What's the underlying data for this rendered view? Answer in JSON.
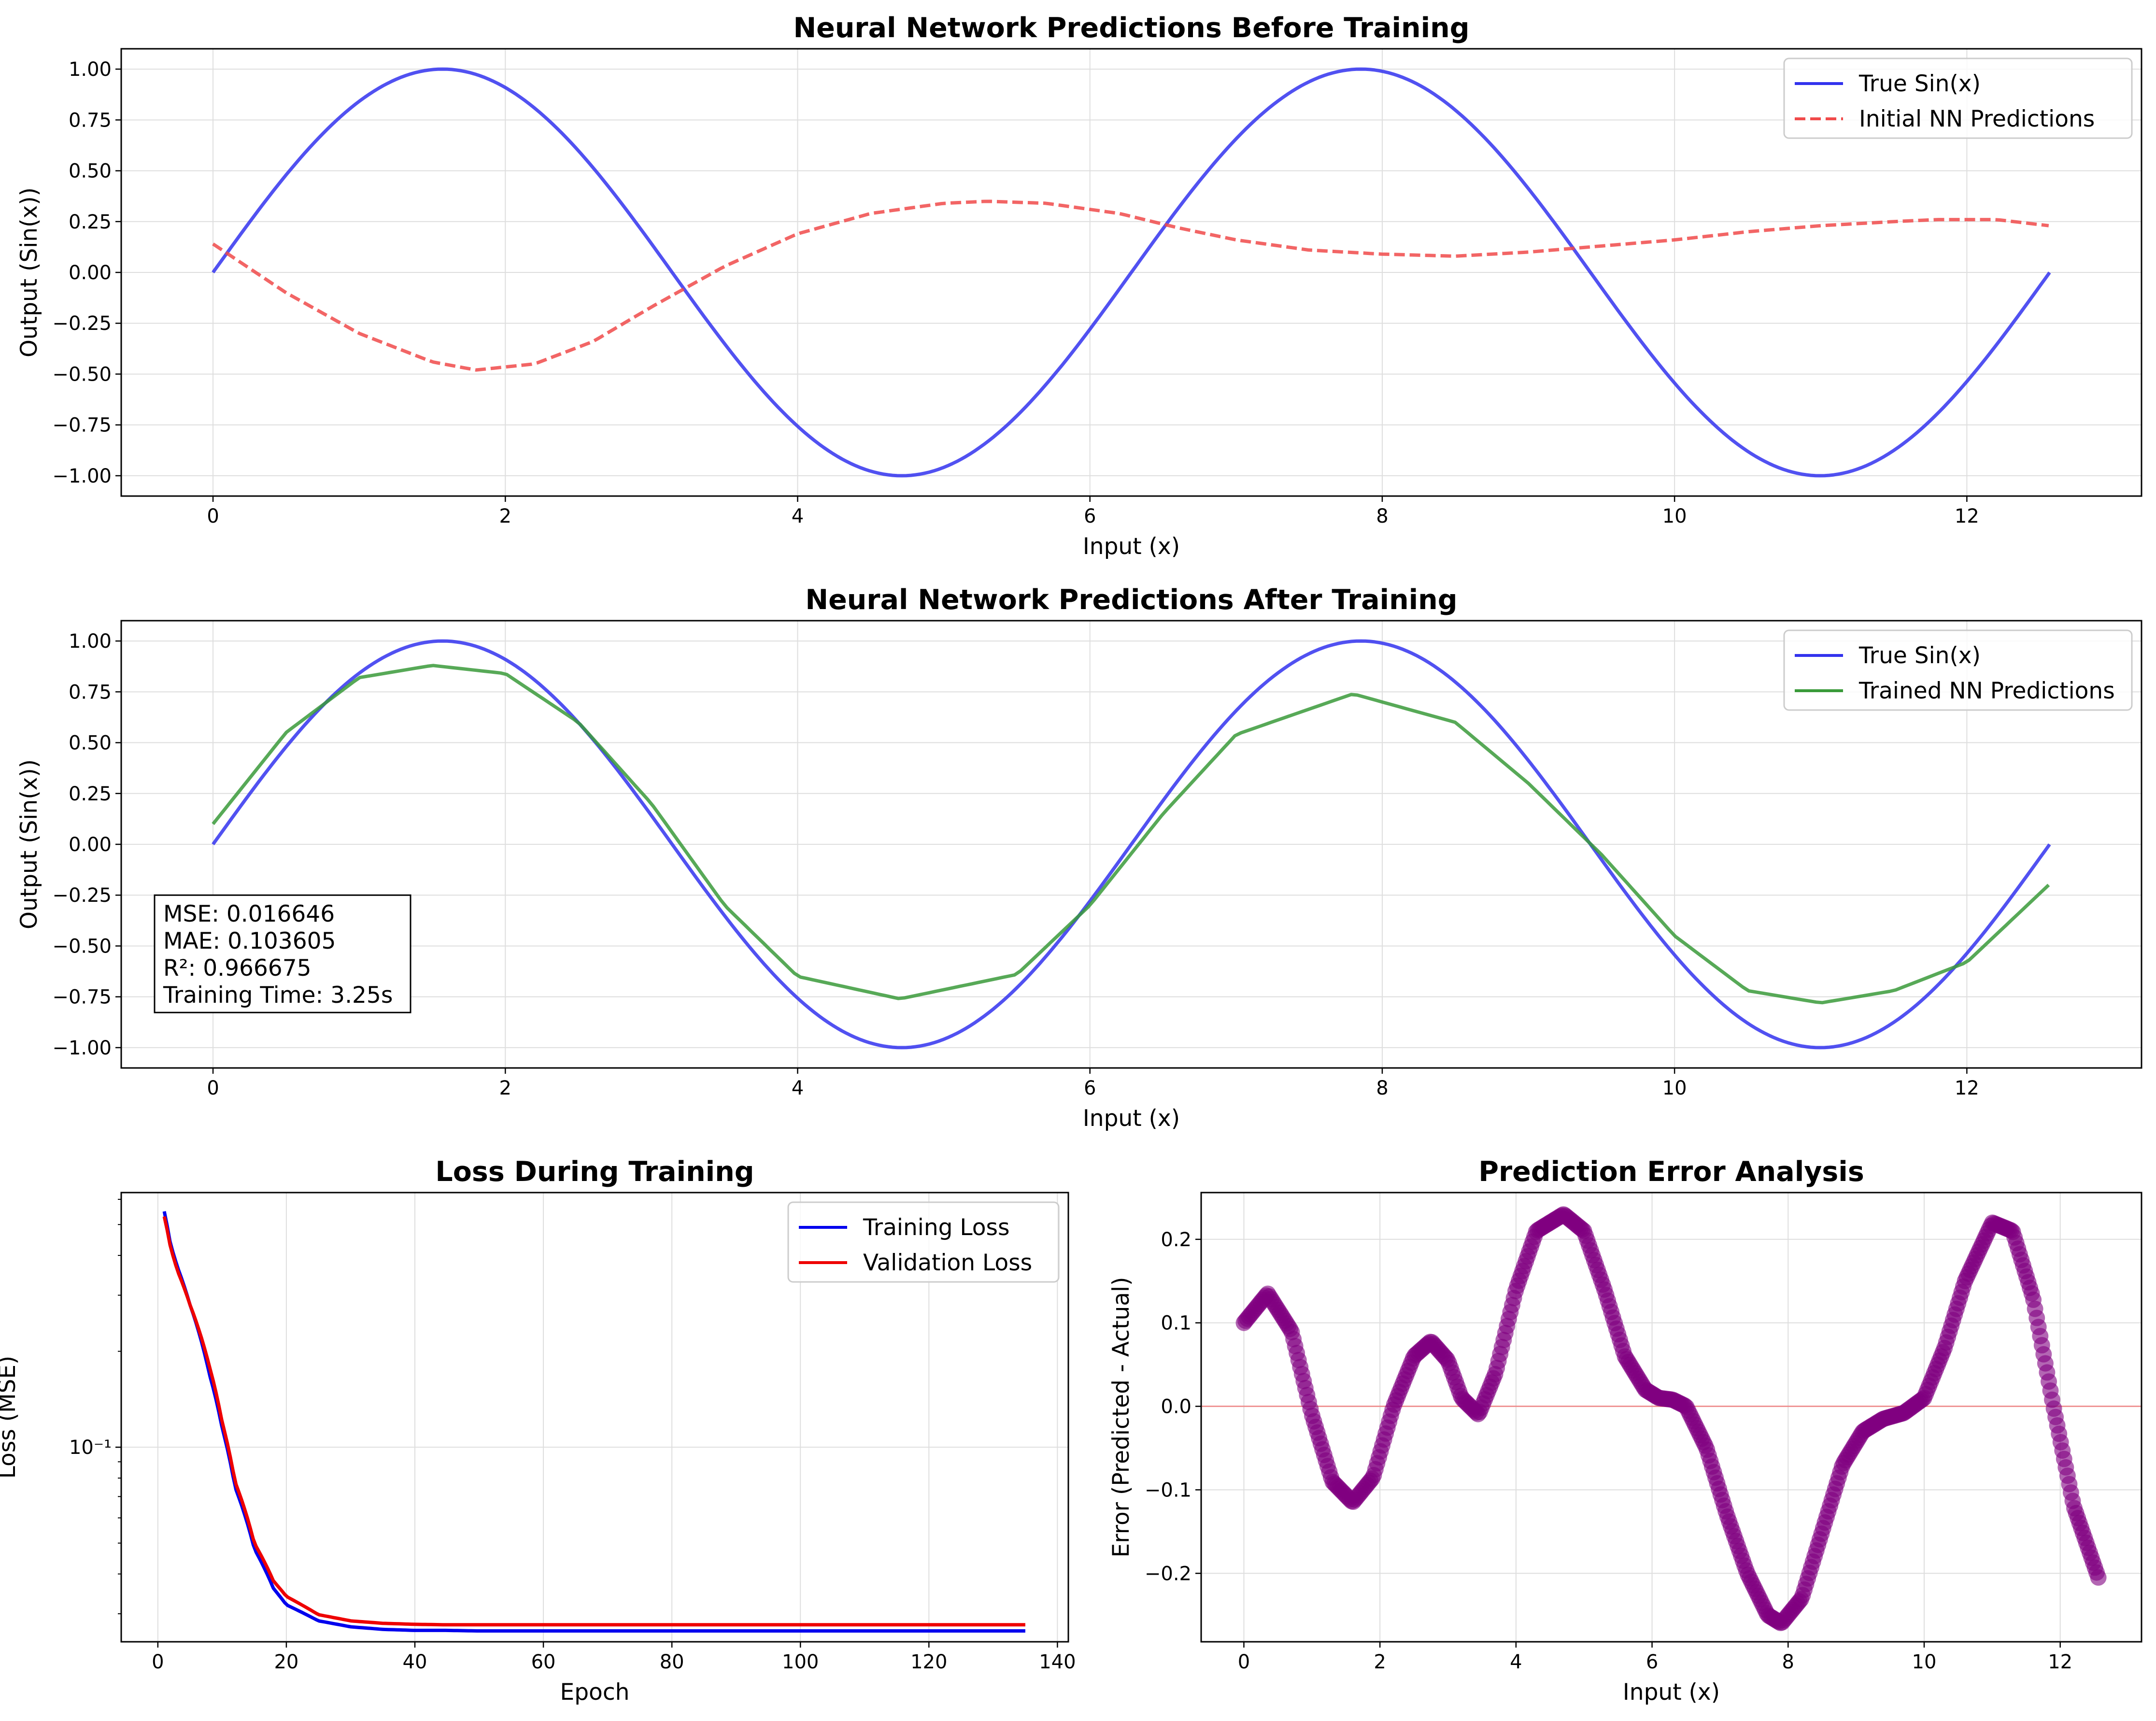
{
  "colors": {
    "true_sin": "#3333ee",
    "initial": "#f04a4a",
    "trained": "#3a9a3a",
    "train_loss": "#0000ee",
    "val_loss": "#ee0000",
    "error": "#800080",
    "zero_line": "#f08080",
    "grid": "#dedede"
  },
  "chart_data": [
    {
      "id": "before",
      "type": "line",
      "title": "Neural Network Predictions Before Training",
      "xlabel": "Input (x)",
      "ylabel": "Output (Sin(x))",
      "xlim": [
        -0.628,
        13.195
      ],
      "ylim": [
        -1.1,
        1.1
      ],
      "xticks": [
        0,
        2,
        4,
        6,
        8,
        10,
        12
      ],
      "yticks": [
        -1.0,
        -0.75,
        -0.5,
        -0.25,
        0.0,
        0.25,
        0.5,
        0.75,
        1.0
      ],
      "ytick_labels": [
        "−1.00",
        "−0.75",
        "−0.50",
        "−0.25",
        "0.00",
        "0.25",
        "0.50",
        "0.75",
        "1.00"
      ],
      "grid": true,
      "legend_position": "top-right",
      "series": [
        {
          "name": "True Sin(x)",
          "style": "solid",
          "color_key": "true_sin",
          "function": "sin",
          "x_range": [
            0,
            12.566
          ]
        },
        {
          "name": "Initial NN Predictions",
          "style": "dashed",
          "color_key": "initial",
          "x": [
            0,
            0.5,
            1.0,
            1.5,
            1.8,
            2.2,
            2.6,
            3.0,
            3.5,
            4.0,
            4.5,
            5.0,
            5.3,
            5.7,
            6.2,
            6.6,
            7.0,
            7.5,
            8.0,
            8.5,
            9.0,
            9.5,
            10.0,
            10.5,
            11.0,
            11.5,
            11.8,
            12.2,
            12.56
          ],
          "y": [
            0.14,
            -0.1,
            -0.3,
            -0.44,
            -0.48,
            -0.45,
            -0.34,
            -0.17,
            0.03,
            0.19,
            0.29,
            0.34,
            0.35,
            0.34,
            0.29,
            0.22,
            0.16,
            0.11,
            0.09,
            0.08,
            0.1,
            0.13,
            0.16,
            0.2,
            0.23,
            0.25,
            0.26,
            0.26,
            0.23
          ]
        }
      ]
    },
    {
      "id": "after",
      "type": "line",
      "title": "Neural Network Predictions After Training",
      "xlabel": "Input (x)",
      "ylabel": "Output (Sin(x))",
      "xlim": [
        -0.628,
        13.195
      ],
      "ylim": [
        -1.1,
        1.1
      ],
      "xticks": [
        0,
        2,
        4,
        6,
        8,
        10,
        12
      ],
      "yticks": [
        -1.0,
        -0.75,
        -0.5,
        -0.25,
        0.0,
        0.25,
        0.5,
        0.75,
        1.0
      ],
      "ytick_labels": [
        "−1.00",
        "−0.75",
        "−0.50",
        "−0.25",
        "0.00",
        "0.25",
        "0.50",
        "0.75",
        "1.00"
      ],
      "grid": true,
      "legend_position": "top-right",
      "series": [
        {
          "name": "True Sin(x)",
          "style": "solid",
          "color_key": "true_sin",
          "function": "sin",
          "x_range": [
            0,
            12.566
          ]
        },
        {
          "name": "Trained NN Predictions",
          "style": "solid",
          "color_key": "trained",
          "x": [
            0,
            0.5,
            1.0,
            1.5,
            2.0,
            2.5,
            3.0,
            3.5,
            4.0,
            4.7,
            5.5,
            6.0,
            6.5,
            7.0,
            7.8,
            8.5,
            9.0,
            9.5,
            10.0,
            10.5,
            11.0,
            11.5,
            12.0,
            12.56
          ],
          "y": [
            0.1,
            0.55,
            0.82,
            0.88,
            0.84,
            0.6,
            0.2,
            -0.3,
            -0.65,
            -0.76,
            -0.64,
            -0.3,
            0.15,
            0.54,
            0.74,
            0.6,
            0.3,
            -0.05,
            -0.45,
            -0.72,
            -0.78,
            -0.72,
            -0.58,
            -0.2
          ]
        }
      ],
      "stats": {
        "mse": "MSE: 0.016646",
        "mae": "MAE: 0.103605",
        "r2": "R²: 0.966675",
        "time": "Training Time: 3.25s"
      }
    },
    {
      "id": "loss",
      "type": "line",
      "title": "Loss During Training",
      "xlabel": "Epoch",
      "ylabel": "Loss (MSE)",
      "xlim": [
        -5.7,
        141.7
      ],
      "ylim": [
        0.0245,
        0.63
      ],
      "yscale": "log",
      "xticks": [
        0,
        20,
        40,
        60,
        80,
        100,
        120,
        140
      ],
      "ytick_label": "10⁻¹",
      "grid": true,
      "legend_position": "top-right",
      "series": [
        {
          "name": "Training Loss",
          "color_key": "train_loss",
          "x": [
            1,
            2,
            3,
            5,
            8,
            10,
            12,
            15,
            18,
            20,
            25,
            30,
            35,
            40,
            45,
            50,
            60,
            80,
            100,
            120,
            135
          ],
          "y": [
            0.55,
            0.43,
            0.37,
            0.28,
            0.17,
            0.115,
            0.075,
            0.048,
            0.036,
            0.032,
            0.0285,
            0.0273,
            0.0268,
            0.0266,
            0.0266,
            0.0265,
            0.0265,
            0.0265,
            0.0265,
            0.0265,
            0.0265
          ]
        },
        {
          "name": "Validation Loss",
          "color_key": "val_loss",
          "x": [
            1,
            2,
            3,
            5,
            8,
            10,
            12,
            15,
            18,
            20,
            25,
            30,
            35,
            40,
            45,
            50,
            60,
            80,
            100,
            120,
            135
          ],
          "y": [
            0.53,
            0.42,
            0.36,
            0.28,
            0.18,
            0.12,
            0.078,
            0.05,
            0.038,
            0.034,
            0.0298,
            0.0285,
            0.028,
            0.0278,
            0.0277,
            0.0277,
            0.0277,
            0.0277,
            0.0277,
            0.0277,
            0.0277
          ]
        }
      ]
    },
    {
      "id": "error",
      "type": "scatter",
      "title": "Prediction Error Analysis",
      "xlabel": "Input (x)",
      "ylabel": "Error (Predicted - Actual)",
      "xlim": [
        -0.628,
        13.195
      ],
      "ylim": [
        -0.282,
        0.256
      ],
      "xticks": [
        0,
        2,
        4,
        6,
        8,
        10,
        12
      ],
      "yticks": [
        -0.2,
        -0.1,
        0.0,
        0.1,
        0.2
      ],
      "ytick_labels": [
        "−0.2",
        "−0.1",
        "0.0",
        "0.1",
        "0.2"
      ],
      "grid": true,
      "zero_line": true,
      "series": [
        {
          "name": "",
          "color_key": "error",
          "x": [
            0,
            0.35,
            0.7,
            1.0,
            1.3,
            1.6,
            1.9,
            2.2,
            2.5,
            2.75,
            3.0,
            3.2,
            3.45,
            3.7,
            4.0,
            4.3,
            4.7,
            5.0,
            5.3,
            5.6,
            5.9,
            6.1,
            6.3,
            6.5,
            6.8,
            7.1,
            7.4,
            7.7,
            7.9,
            8.2,
            8.5,
            8.8,
            9.1,
            9.4,
            9.7,
            10.0,
            10.3,
            10.6,
            11.0,
            11.3,
            11.6,
            11.9,
            12.2,
            12.56
          ],
          "y": [
            0.1,
            0.135,
            0.09,
            -0.01,
            -0.09,
            -0.115,
            -0.085,
            0.0,
            0.06,
            0.078,
            0.055,
            0.01,
            -0.01,
            0.04,
            0.14,
            0.21,
            0.23,
            0.21,
            0.14,
            0.06,
            0.02,
            0.01,
            0.008,
            0.0,
            -0.05,
            -0.13,
            -0.2,
            -0.25,
            -0.26,
            -0.23,
            -0.15,
            -0.07,
            -0.03,
            -0.015,
            -0.008,
            0.01,
            0.07,
            0.15,
            0.22,
            0.21,
            0.13,
            0.0,
            -0.12,
            -0.205
          ]
        }
      ]
    }
  ]
}
